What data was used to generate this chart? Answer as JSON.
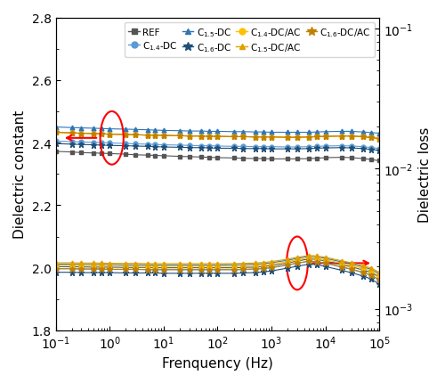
{
  "freq": [
    0.1,
    0.2,
    0.3,
    0.5,
    0.7,
    1.0,
    2.0,
    3.0,
    5.0,
    7.0,
    10.0,
    20.0,
    30.0,
    50.0,
    70.0,
    100.0,
    200.0,
    300.0,
    500.0,
    700.0,
    1000.0,
    2000.0,
    3000.0,
    5000.0,
    7000.0,
    10000.0,
    20000.0,
    30000.0,
    50000.0,
    70000.0,
    100000.0
  ],
  "xlim": [
    0.1,
    100000
  ],
  "ylim_left": [
    1.8,
    2.8
  ],
  "ylim_right": [
    0.0007,
    0.12
  ],
  "xlabel": "Frenquency (Hz)",
  "ylabel_left": "Dielectric constant",
  "ylabel_right": "Dielectric loss",
  "colors": {
    "gray": "#555555",
    "blue_light": "#5b9bd5",
    "blue_med": "#2e75b6",
    "blue_dark": "#1f4e79",
    "yellow_light": "#ffc000",
    "yellow_med": "#e0a000",
    "yellow_dark": "#c08000"
  },
  "series": {
    "REF_eps": [
      2.372,
      2.37,
      2.368,
      2.367,
      2.366,
      2.365,
      2.363,
      2.361,
      2.36,
      2.359,
      2.358,
      2.356,
      2.355,
      2.354,
      2.353,
      2.352,
      2.351,
      2.35,
      2.349,
      2.349,
      2.348,
      2.348,
      2.348,
      2.349,
      2.35,
      2.352,
      2.353,
      2.352,
      2.349,
      2.346,
      2.342
    ],
    "C14DC_eps": [
      2.405,
      2.403,
      2.402,
      2.401,
      2.4,
      2.399,
      2.397,
      2.396,
      2.395,
      2.394,
      2.393,
      2.392,
      2.391,
      2.39,
      2.39,
      2.389,
      2.388,
      2.388,
      2.387,
      2.387,
      2.387,
      2.386,
      2.386,
      2.387,
      2.388,
      2.389,
      2.39,
      2.389,
      2.387,
      2.384,
      2.381
    ],
    "C15DC_eps": [
      2.45,
      2.448,
      2.447,
      2.446,
      2.445,
      2.444,
      2.443,
      2.442,
      2.441,
      2.44,
      2.439,
      2.438,
      2.437,
      2.437,
      2.436,
      2.436,
      2.435,
      2.435,
      2.434,
      2.434,
      2.433,
      2.433,
      2.433,
      2.433,
      2.434,
      2.435,
      2.436,
      2.436,
      2.434,
      2.432,
      2.43
    ],
    "C16DC_eps": [
      2.397,
      2.395,
      2.394,
      2.393,
      2.392,
      2.391,
      2.39,
      2.389,
      2.388,
      2.387,
      2.386,
      2.385,
      2.384,
      2.384,
      2.383,
      2.382,
      2.382,
      2.381,
      2.381,
      2.381,
      2.38,
      2.38,
      2.38,
      2.381,
      2.382,
      2.383,
      2.384,
      2.383,
      2.381,
      2.378,
      2.375
    ],
    "C14DCAC_eps": [
      2.433,
      2.431,
      2.43,
      2.429,
      2.428,
      2.427,
      2.426,
      2.425,
      2.424,
      2.424,
      2.423,
      2.422,
      2.421,
      2.421,
      2.42,
      2.42,
      2.419,
      2.419,
      2.418,
      2.418,
      2.418,
      2.417,
      2.417,
      2.418,
      2.419,
      2.42,
      2.421,
      2.421,
      2.419,
      2.416,
      2.413
    ],
    "C15DCAC_eps": [
      2.433,
      2.431,
      2.43,
      2.429,
      2.428,
      2.427,
      2.426,
      2.425,
      2.424,
      2.424,
      2.423,
      2.422,
      2.421,
      2.421,
      2.42,
      2.42,
      2.419,
      2.419,
      2.418,
      2.418,
      2.418,
      2.417,
      2.417,
      2.418,
      2.419,
      2.42,
      2.421,
      2.421,
      2.419,
      2.416,
      2.413
    ],
    "C16DCAC_eps": [
      2.433,
      2.431,
      2.43,
      2.429,
      2.428,
      2.427,
      2.426,
      2.425,
      2.424,
      2.424,
      2.423,
      2.422,
      2.421,
      2.421,
      2.42,
      2.42,
      2.419,
      2.419,
      2.418,
      2.418,
      2.418,
      2.417,
      2.417,
      2.418,
      2.419,
      2.42,
      2.421,
      2.421,
      2.419,
      2.416,
      2.413
    ],
    "REF_loss": [
      0.002,
      0.00199,
      0.00199,
      0.00198,
      0.00198,
      0.00198,
      0.00197,
      0.00197,
      0.00197,
      0.00196,
      0.00196,
      0.00196,
      0.00196,
      0.00196,
      0.00196,
      0.00196,
      0.00196,
      0.00197,
      0.00198,
      0.002,
      0.00203,
      0.00212,
      0.00219,
      0.00227,
      0.00225,
      0.00219,
      0.00206,
      0.00199,
      0.00189,
      0.00181,
      0.00168
    ],
    "C14DC_loss": [
      0.00193,
      0.00193,
      0.00192,
      0.00192,
      0.00192,
      0.00191,
      0.00191,
      0.00191,
      0.0019,
      0.0019,
      0.0019,
      0.0019,
      0.0019,
      0.0019,
      0.0019,
      0.0019,
      0.0019,
      0.0019,
      0.00192,
      0.00193,
      0.00196,
      0.00205,
      0.00211,
      0.00218,
      0.00216,
      0.00211,
      0.00198,
      0.00191,
      0.00181,
      0.00173,
      0.0016
    ],
    "C15DC_loss": [
      0.00208,
      0.00208,
      0.00207,
      0.00207,
      0.00207,
      0.00207,
      0.00206,
      0.00206,
      0.00206,
      0.00205,
      0.00205,
      0.00205,
      0.00205,
      0.00205,
      0.00205,
      0.00205,
      0.00206,
      0.00207,
      0.00208,
      0.0021,
      0.00213,
      0.00222,
      0.00229,
      0.00237,
      0.00235,
      0.00229,
      0.00216,
      0.00209,
      0.00199,
      0.00191,
      0.00178
    ],
    "C16DC_loss": [
      0.00182,
      0.00182,
      0.00181,
      0.00181,
      0.00181,
      0.00181,
      0.0018,
      0.0018,
      0.0018,
      0.0018,
      0.00179,
      0.00179,
      0.00179,
      0.00179,
      0.00179,
      0.00179,
      0.00179,
      0.0018,
      0.00181,
      0.00183,
      0.00186,
      0.00195,
      0.00201,
      0.00208,
      0.00206,
      0.002,
      0.00188,
      0.00181,
      0.00171,
      0.00163,
      0.0015
    ],
    "C14DCAC_loss": [
      0.00205,
      0.00204,
      0.00204,
      0.00203,
      0.00203,
      0.00203,
      0.00202,
      0.00202,
      0.00202,
      0.00201,
      0.00201,
      0.00201,
      0.00201,
      0.00201,
      0.00201,
      0.00201,
      0.00201,
      0.00202,
      0.00203,
      0.00205,
      0.00208,
      0.00217,
      0.00224,
      0.00231,
      0.00229,
      0.00224,
      0.00211,
      0.00204,
      0.00194,
      0.00186,
      0.00173
    ],
    "C15DCAC_loss": [
      0.00213,
      0.00213,
      0.00212,
      0.00212,
      0.00212,
      0.00211,
      0.00211,
      0.00211,
      0.0021,
      0.0021,
      0.0021,
      0.0021,
      0.0021,
      0.0021,
      0.0021,
      0.0021,
      0.0021,
      0.00211,
      0.00212,
      0.00214,
      0.00217,
      0.00226,
      0.00233,
      0.0024,
      0.00238,
      0.00233,
      0.0022,
      0.00213,
      0.00203,
      0.00195,
      0.00182
    ],
    "C16DCAC_loss": [
      0.00193,
      0.00193,
      0.00192,
      0.00192,
      0.00192,
      0.00191,
      0.00191,
      0.00191,
      0.0019,
      0.0019,
      0.0019,
      0.0019,
      0.0019,
      0.0019,
      0.0019,
      0.0019,
      0.0019,
      0.00191,
      0.00192,
      0.00194,
      0.00197,
      0.00206,
      0.00212,
      0.00219,
      0.00217,
      0.00212,
      0.00199,
      0.00192,
      0.00182,
      0.00174,
      0.00161
    ]
  }
}
